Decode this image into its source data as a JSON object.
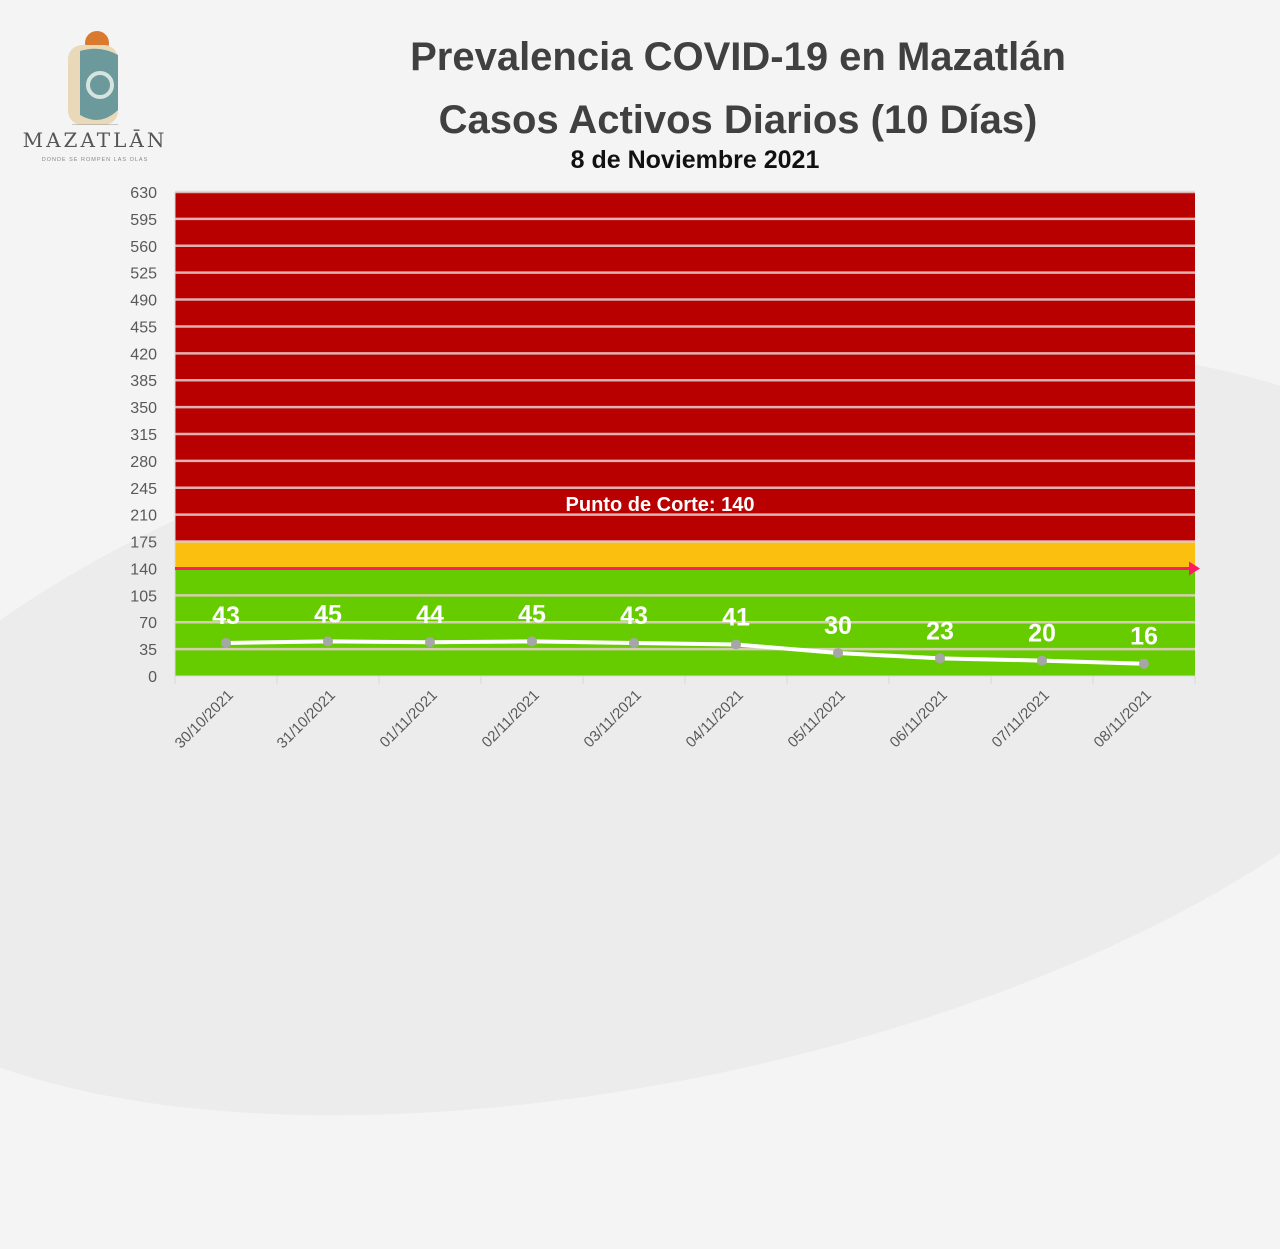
{
  "logo": {
    "word": "MAZATLĀN",
    "tagline": "DONDE SE ROMPEN LAS OLAS"
  },
  "chart_data": {
    "type": "line",
    "title": "Prevalencia COVID-19 en Mazatlán",
    "subtitle": "Casos Activos Diarios (10 Días)",
    "date": "8 de Noviembre 2021",
    "categories": [
      "30/10/2021",
      "31/10/2021",
      "01/11/2021",
      "02/11/2021",
      "03/11/2021",
      "04/11/2021",
      "05/11/2021",
      "06/11/2021",
      "07/11/2021",
      "08/11/2021"
    ],
    "values": [
      43,
      45,
      44,
      45,
      43,
      41,
      30,
      23,
      20,
      16
    ],
    "ylim": [
      0,
      630
    ],
    "yticks": [
      0,
      35,
      70,
      105,
      140,
      175,
      210,
      245,
      280,
      315,
      350,
      385,
      420,
      455,
      490,
      525,
      560,
      595,
      630
    ],
    "grid": true,
    "bands": [
      {
        "from": 0,
        "to": 140,
        "color": "#66cc00"
      },
      {
        "from": 140,
        "to": 175,
        "color": "#fbbf10"
      },
      {
        "from": 175,
        "to": 630,
        "color": "#b80000"
      }
    ],
    "threshold": {
      "value": 140,
      "label": "Punto de Corte: 140",
      "color": "#ff1a66"
    },
    "line_color": "#ffffff",
    "marker_color": "#a6a6a6"
  }
}
